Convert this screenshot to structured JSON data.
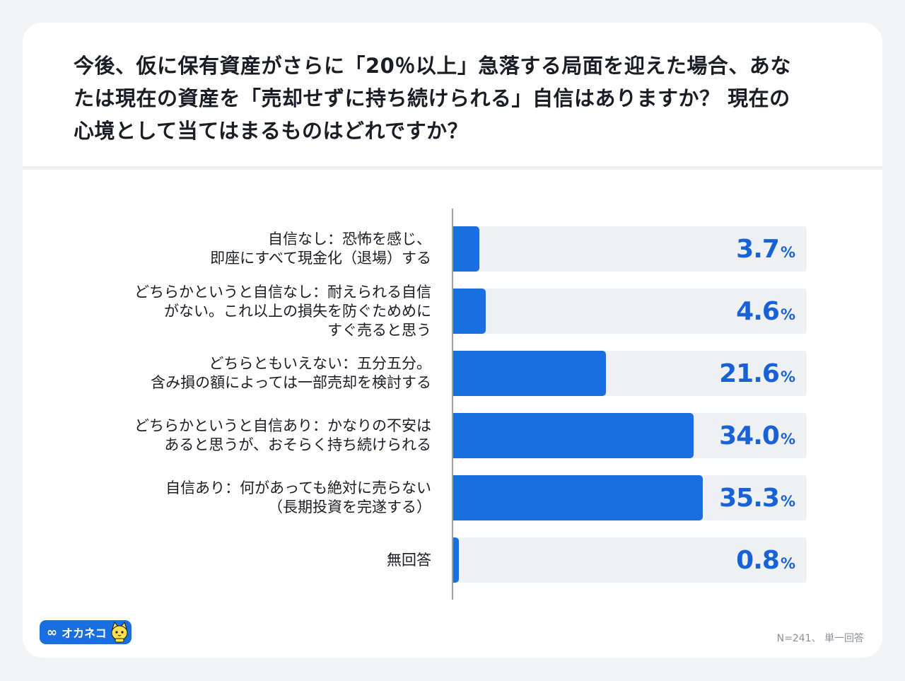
{
  "question": "今後、仮に保有資産がさらに「20％以上」急落する局面を迎えた場合、あな\nたは現在の資産を「売却せずに持ち続けられる」自信はありますか？ 現在の\n心境として当てはまるものはどれですか？",
  "chart_data": {
    "type": "bar",
    "orientation": "horizontal",
    "categories": [
      "自信なし：恐怖を感じ、\n即座にすべて現金化（退場）する",
      "どちらかというと自信なし：耐えられる自信\nがない。これ以上の損失を防ぐためめに\nすぐ売ると思う",
      "どちらともいえない：五分五分。\n含み損の額によっては一部売却を検討する",
      "どちらかというと自信あり：かなりの不安は\nあると思うが、おそらく持ち続けられる",
      "自信あり：何があっても絶対に売らない\n（長期投資を完遂する）",
      "無回答"
    ],
    "values": [
      3.7,
      4.6,
      21.6,
      34.0,
      35.3,
      0.8
    ],
    "value_labels": [
      "3.7",
      "4.6",
      "21.6",
      "34.0",
      "35.3",
      "0.8"
    ],
    "unit": "%",
    "xlim": [
      0,
      50
    ],
    "bar_color": "#1a6fe0",
    "track_color": "#eef0f4",
    "value_color": "#1862d6"
  },
  "logo": {
    "symbol": "∞",
    "text": "オカネコ",
    "icon": "cat-mascot-icon"
  },
  "footnote": "N=241、 単一回答"
}
